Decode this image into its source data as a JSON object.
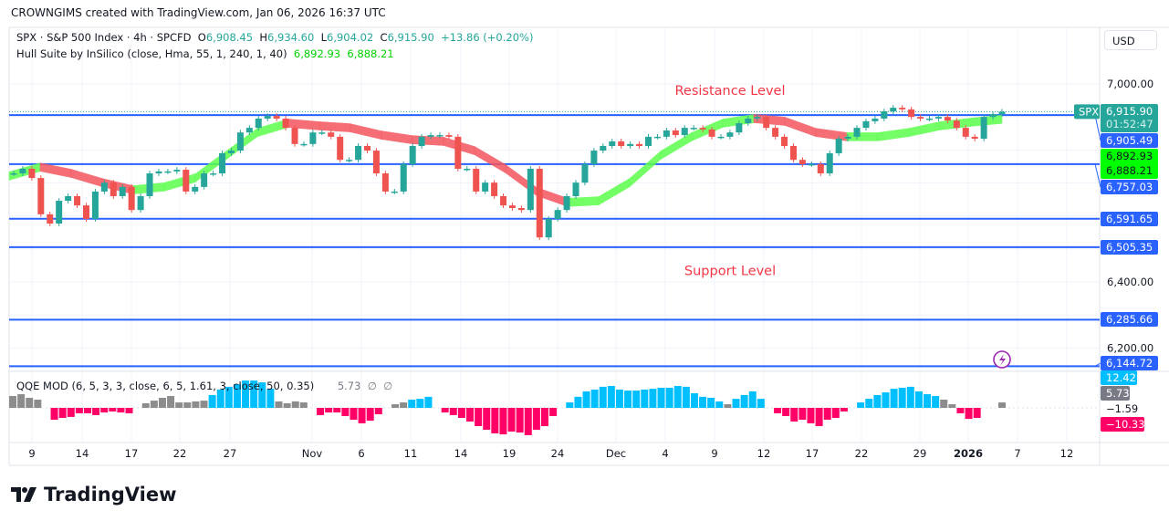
{
  "header": {
    "credit": "CROWNGIMS created with TradingView.com, Jan 06, 2026 16:37 UTC"
  },
  "legend": {
    "symbol": "SPX · S&P 500 Index · 4h · SPCFD",
    "o_label": "O",
    "o": "6,908.45",
    "h_label": "H",
    "h": "6,934.60",
    "l_label": "L",
    "l": "6,904.02",
    "c_label": "C",
    "c": "6,915.90",
    "change": "+13.86 (+0.20%)",
    "hull_name": "Hull Suite by InSilico (close, Hma, 55, 1, 240, 1, 40)",
    "hull_v1": "6,892.93",
    "hull_v2": "6,888.21",
    "qqe_name": "QQE MOD (6, 5, 3, 3, close, 6, 5, 1.61, 3, close, 50, 0.35)",
    "qqe_v": "5.73",
    "qqe_na1": "∅",
    "qqe_na2": "∅"
  },
  "currency": "USD",
  "brand": "TradingView",
  "colors": {
    "up": "#26a69a",
    "down": "#ef5350",
    "hull_up": "#5cff4d",
    "hull_down": "#f4555f",
    "level": "#2962ff",
    "annotation": "#f23645",
    "qqe_blue": "#00bfff",
    "qqe_gray": "#8c8c8c",
    "qqe_pink": "#ff0066",
    "alert": "#9c27b0"
  },
  "icons": {
    "alert": "lightning-alert-icon",
    "logo": "tradingview-logo-icon"
  },
  "chart_data": [
    {
      "type": "candlestick",
      "title": "SPX · S&P 500 Index · 4h · SPCFD",
      "ylim": [
        6130,
        7060
      ],
      "y_ticks": [
        "7,000.00",
        "6,400.00",
        "6,200.00"
      ],
      "y_tick_values": [
        7000,
        6400,
        6200
      ],
      "x_ticks": [
        "9",
        "14",
        "17",
        "22",
        "27",
        "Nov",
        "6",
        "11",
        "14",
        "19",
        "24",
        "Dec",
        "4",
        "9",
        "12",
        "17",
        "22",
        "29",
        "2026",
        "7",
        "12"
      ],
      "close": [
        6729,
        6743,
        6715,
        6605,
        6577,
        6646,
        6660,
        6632,
        6591,
        6674,
        6701,
        6660,
        6688,
        6618,
        6660,
        6729,
        6735,
        6735,
        6740,
        6674,
        6688,
        6729,
        6729,
        6790,
        6798,
        6853,
        6867,
        6895,
        6903,
        6895,
        6867,
        6818,
        6818,
        6853,
        6853,
        6840,
        6770,
        6770,
        6812,
        6798,
        6729,
        6674,
        6674,
        6757,
        6812,
        6840,
        6845,
        6845,
        6840,
        6743,
        6743,
        6674,
        6701,
        6660,
        6632,
        6624,
        6618,
        6743,
        6535,
        6591,
        6618,
        6660,
        6701,
        6757,
        6798,
        6812,
        6826,
        6812,
        6818,
        6812,
        6840,
        6840,
        6859,
        6845,
        6867,
        6867,
        6862,
        6840,
        6840,
        6853,
        6881,
        6895,
        6900,
        6867,
        6840,
        6812,
        6770,
        6757,
        6757,
        6729,
        6790,
        6834,
        6840,
        6867,
        6887,
        6895,
        6917,
        6928,
        6923,
        6900,
        6895,
        6895,
        6900,
        6889,
        6867,
        6840,
        6834,
        6900,
        6908.45,
        6915.9
      ],
      "hull": [
        6721,
        6748,
        6729,
        6701,
        6679,
        6688,
        6715,
        6784,
        6853,
        6881,
        6873,
        6867,
        6845,
        6831,
        6826,
        6798,
        6743,
        6674,
        6641,
        6646,
        6701,
        6784,
        6840,
        6881,
        6895,
        6887,
        6853,
        6840,
        6840,
        6853,
        6873,
        6884,
        6892.93
      ],
      "levels": [
        {
          "value": 6905.49,
          "label": "6,905.49"
        },
        {
          "value": 6757.03,
          "label": "6,757.03"
        },
        {
          "value": 6591.65,
          "label": "6,591.65"
        },
        {
          "value": 6505.35,
          "label": "6,505.35"
        },
        {
          "value": 6285.66,
          "label": "6,285.66"
        },
        {
          "value": 6144.72,
          "label": "6,144.72"
        }
      ],
      "last_price": {
        "value": 6915.9,
        "label": "6,915.90",
        "countdown": "01:52:47",
        "symbol_tag": "SPX"
      },
      "hull_tags": [
        {
          "value": 6892.93,
          "label": "6,892.93"
        },
        {
          "value": 6888.21,
          "label": "6,888.21"
        }
      ],
      "annotations": [
        {
          "text": "Resistance Level",
          "price": 6980
        },
        {
          "text": "Support Level",
          "price": 6435
        }
      ]
    },
    {
      "type": "bar",
      "title": "QQE MOD (6, 5, 3, 3, close, 6, 5, 1.61, 3, close, 50, 0.35)",
      "values": [
        5.9,
        6.8,
        5.0,
        4.1,
        null,
        -5.9,
        -5,
        -4.5,
        -2.7,
        -2.7,
        -3.6,
        -2.3,
        -1.8,
        -2.3,
        -2.7,
        null,
        2.3,
        3.6,
        5,
        5.9,
        2.7,
        2.7,
        3.2,
        3.6,
        6.4,
        9.1,
        10.5,
        11.8,
        13.6,
        13.6,
        12.7,
        9.5,
        3.2,
        2.3,
        3.2,
        2.7,
        null,
        -3.6,
        -2.3,
        -2.3,
        -4.1,
        -5.9,
        -7.7,
        -6.4,
        -3.2,
        null,
        1.8,
        2.7,
        4.1,
        4.5,
        5.5,
        null,
        -2.3,
        -3.6,
        -5,
        -6.8,
        -9.1,
        -10.9,
        -12.7,
        -13.2,
        -11.8,
        -12.3,
        -13.6,
        -10.9,
        -9.1,
        -4.1,
        null,
        2.7,
        5.5,
        8.2,
        9.1,
        10.5,
        10.9,
        9.1,
        8.6,
        8.6,
        9.1,
        9.5,
        10,
        10,
        10.9,
        10.5,
        7.3,
        5.5,
        5,
        3.2,
        1.8,
        4.5,
        6.4,
        8.2,
        4.5,
        null,
        -2.7,
        -4.1,
        -6.8,
        -5.9,
        -7.7,
        -9.1,
        -5.9,
        -5,
        -1.8,
        null,
        2.7,
        4.5,
        6.4,
        7.7,
        9.5,
        10,
        10.5,
        8.2,
        6.8,
        5.9,
        4.1,
        1.8,
        -2.7,
        -5.5,
        -5,
        null,
        null,
        2.7
      ],
      "colors": [
        "g",
        "g",
        "g",
        "g",
        null,
        "p",
        "p",
        "p",
        "p",
        "p",
        "p",
        "p",
        "p",
        "p",
        "p",
        null,
        "g",
        "g",
        "g",
        "g",
        "g",
        "g",
        "g",
        "g",
        "b",
        "b",
        "b",
        "b",
        "b",
        "b",
        "b",
        "b",
        "g",
        "g",
        "g",
        "g",
        null,
        "p",
        "p",
        "p",
        "p",
        "p",
        "p",
        "p",
        "p",
        null,
        "g",
        "g",
        "b",
        "b",
        "b",
        null,
        "p",
        "p",
        "p",
        "p",
        "p",
        "p",
        "p",
        "p",
        "p",
        "p",
        "p",
        "p",
        "p",
        "p",
        null,
        "b",
        "b",
        "b",
        "b",
        "b",
        "b",
        "b",
        "b",
        "b",
        "b",
        "b",
        "b",
        "b",
        "b",
        "b",
        "b",
        "b",
        "b",
        "b",
        "g",
        "b",
        "b",
        "b",
        "b",
        null,
        "p",
        "p",
        "p",
        "p",
        "p",
        "p",
        "p",
        "p",
        "p",
        null,
        "b",
        "b",
        "b",
        "b",
        "b",
        "b",
        "b",
        "b",
        "b",
        "b",
        "g",
        "g",
        "p",
        "p",
        "p",
        null,
        null,
        "g"
      ],
      "tags": [
        {
          "value": 12.42,
          "label": "12.42",
          "color": "#00bfff"
        },
        {
          "value": 5.73,
          "label": "5.73",
          "color": "#787b86"
        },
        {
          "value": -1.59,
          "label": "−1.59",
          "color": null
        },
        {
          "value": -10.33,
          "label": "−10.33",
          "color": "#ff0066"
        }
      ]
    }
  ]
}
